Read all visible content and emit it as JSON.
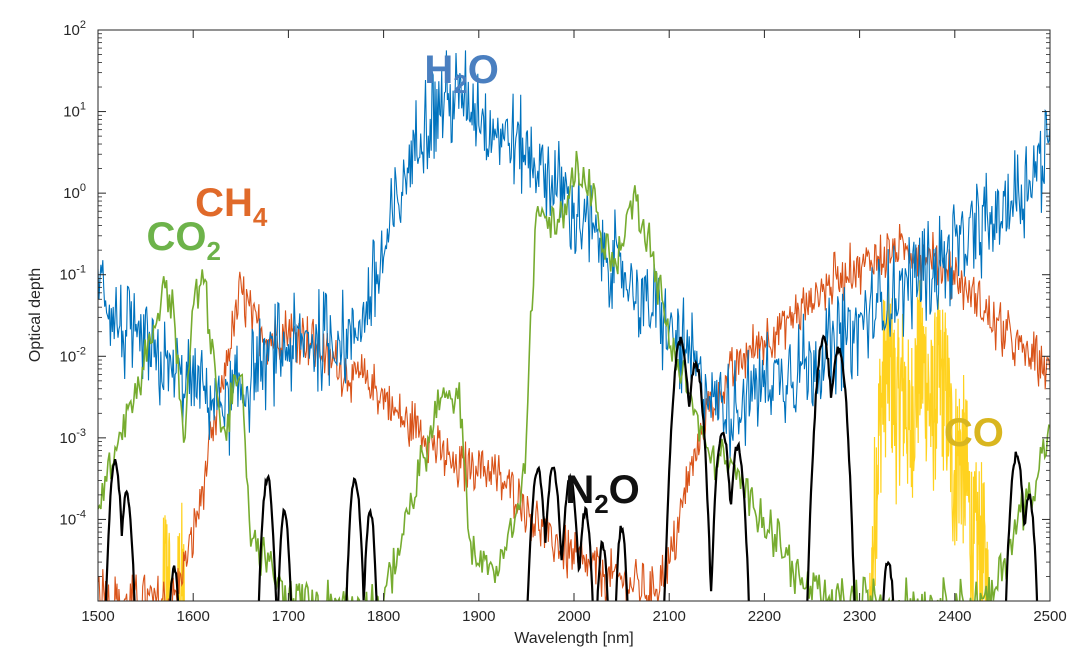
{
  "chart_data": {
    "type": "line",
    "title": "",
    "xlabel": "Wavelength [nm]",
    "ylabel": "Optical depth",
    "xlim": [
      1500,
      2500
    ],
    "ylim_log10": [
      -5,
      2
    ],
    "yscale": "log",
    "grid": false,
    "x_ticks": [
      1500,
      1600,
      1700,
      1800,
      1900,
      2000,
      2100,
      2200,
      2300,
      2400,
      2500
    ],
    "y_ticks": [
      {
        "base": "10",
        "exp": "-4",
        "log10": -4
      },
      {
        "base": "10",
        "exp": "-3",
        "log10": -3
      },
      {
        "base": "10",
        "exp": "-2",
        "log10": -2
      },
      {
        "base": "10",
        "exp": "-1",
        "log10": -1
      },
      {
        "base": "10",
        "exp": "0",
        "log10": 0
      },
      {
        "base": "10",
        "exp": "1",
        "log10": 1
      },
      {
        "base": "10",
        "exp": "2",
        "log10": 2
      }
    ],
    "annotations": [
      {
        "base": "H",
        "sub": "2",
        "rest": "O",
        "color": "#4a7fc0",
        "x": 1882,
        "log10y": 1.35
      },
      {
        "base": "CH",
        "sub": "4",
        "rest": "",
        "color": "#e06a2a",
        "x": 1640,
        "log10y": -0.28
      },
      {
        "base": "CO",
        "sub": "2",
        "rest": "",
        "color": "#6db34a",
        "x": 1590,
        "log10y": -0.7
      },
      {
        "base": "N",
        "sub": "2",
        "rest": "O",
        "color": "#111111",
        "x": 2030,
        "log10y": -3.8
      },
      {
        "base": "CO",
        "sub": "",
        "rest": "",
        "color": "#d9b61f",
        "x": 2420,
        "log10y": -3.1
      }
    ],
    "series_colors": {
      "H2O": "#0072bd",
      "CH4": "#d95319",
      "CO2": "#77ac30",
      "N2O": "#000000",
      "CO": "#ffd21f"
    },
    "series": [
      {
        "name": "H2O",
        "x": [
          1500,
          1520,
          1540,
          1560,
          1580,
          1600,
          1620,
          1640,
          1660,
          1680,
          1700,
          1720,
          1740,
          1760,
          1780,
          1800,
          1820,
          1840,
          1860,
          1880,
          1900,
          1920,
          1940,
          1960,
          1980,
          2000,
          2020,
          2040,
          2060,
          2080,
          2100,
          2120,
          2140,
          2160,
          2180,
          2200,
          2220,
          2240,
          2260,
          2280,
          2300,
          2320,
          2340,
          2360,
          2380,
          2400,
          2420,
          2440,
          2460,
          2480,
          2500
        ],
        "values": [
          -1.0,
          -1.6,
          -1.9,
          -2.1,
          -2.2,
          -2.3,
          -2.5,
          -2.6,
          -2.3,
          -2.0,
          -1.9,
          -1.8,
          -1.8,
          -1.8,
          -1.5,
          -0.8,
          0.1,
          0.8,
          1.1,
          1.2,
          1.0,
          0.8,
          0.6,
          0.4,
          0.1,
          -0.2,
          -0.5,
          -0.8,
          -1.1,
          -1.4,
          -1.7,
          -2.0,
          -2.4,
          -2.7,
          -2.5,
          -2.3,
          -2.2,
          -2.1,
          -2.0,
          -1.8,
          -1.6,
          -1.4,
          -1.2,
          -1.0,
          -0.9,
          -0.7,
          -0.5,
          -0.3,
          -0.1,
          0.2,
          0.5
        ],
        "noise_amp": 0.65
      },
      {
        "name": "CH4",
        "x": [
          1500,
          1520,
          1540,
          1560,
          1580,
          1600,
          1620,
          1640,
          1650,
          1660,
          1680,
          1700,
          1720,
          1740,
          1760,
          1780,
          1800,
          1820,
          1840,
          1860,
          1880,
          1900,
          1920,
          1940,
          1960,
          1980,
          2000,
          2020,
          2040,
          2060,
          2080,
          2100,
          2120,
          2140,
          2160,
          2180,
          2200,
          2220,
          2240,
          2260,
          2280,
          2300,
          2320,
          2340,
          2360,
          2380,
          2400,
          2420,
          2440,
          2460,
          2480,
          2500
        ],
        "values": [
          -4.8,
          -5.0,
          -5.0,
          -5.0,
          -5.0,
          -4.2,
          -3.0,
          -1.8,
          -1.2,
          -1.5,
          -1.8,
          -1.7,
          -1.8,
          -2.0,
          -2.2,
          -2.3,
          -2.5,
          -2.8,
          -2.9,
          -3.2,
          -3.4,
          -3.3,
          -3.5,
          -3.7,
          -4.0,
          -4.3,
          -4.5,
          -4.6,
          -4.7,
          -4.8,
          -4.9,
          -4.6,
          -3.5,
          -2.7,
          -2.3,
          -2.0,
          -1.8,
          -1.6,
          -1.4,
          -1.2,
          -1.0,
          -0.9,
          -0.8,
          -0.7,
          -0.7,
          -0.8,
          -1.0,
          -1.3,
          -1.6,
          -1.8,
          -2.0,
          -2.2
        ],
        "noise_amp": 0.35
      },
      {
        "name": "CO2",
        "x": [
          1500,
          1520,
          1540,
          1560,
          1570,
          1580,
          1590,
          1600,
          1610,
          1620,
          1630,
          1650,
          1660,
          1700,
          1800,
          1860,
          1880,
          1890,
          1900,
          1920,
          1940,
          1950,
          1960,
          1970,
          1980,
          1990,
          2000,
          2010,
          2020,
          2030,
          2040,
          2050,
          2060,
          2070,
          2080,
          2090,
          2100,
          2120,
          2140,
          2160,
          2180,
          2200,
          2220,
          2240,
          2260,
          2280,
          2300,
          2440,
          2460,
          2480,
          2500
        ],
        "values": [
          -3.8,
          -3.0,
          -2.4,
          -1.6,
          -1.1,
          -1.4,
          -3.2,
          -1.3,
          -1.0,
          -1.8,
          -3.0,
          -2.2,
          -4.2,
          -5.0,
          -5.0,
          -2.5,
          -2.6,
          -4.2,
          -4.5,
          -4.6,
          -4.0,
          -3.0,
          -0.2,
          -0.3,
          -0.5,
          -0.2,
          0.3,
          0.2,
          0.0,
          -0.6,
          -0.9,
          -0.6,
          -0.1,
          -0.2,
          -0.6,
          -1.2,
          -1.8,
          -2.4,
          -3.2,
          -3.3,
          -3.6,
          -4.0,
          -4.4,
          -4.8,
          -5.0,
          -5.0,
          -5.0,
          -5.0,
          -4.2,
          -3.6,
          -3.0
        ],
        "noise_amp": 0.3
      },
      {
        "name": "N2O",
        "bands": [
          {
            "center": 1518,
            "width": 7,
            "peak": -3.3
          },
          {
            "center": 1530,
            "width": 7,
            "peak": -3.7
          },
          {
            "center": 1580,
            "width": 6,
            "peak": -4.6
          },
          {
            "center": 1678,
            "width": 7,
            "peak": -3.5
          },
          {
            "center": 1696,
            "width": 6,
            "peak": -3.9
          },
          {
            "center": 1770,
            "width": 7,
            "peak": -3.5
          },
          {
            "center": 1786,
            "width": 6,
            "peak": -3.9
          },
          {
            "center": 1962,
            "width": 8,
            "peak": -3.4
          },
          {
            "center": 1978,
            "width": 8,
            "peak": -3.4
          },
          {
            "center": 1996,
            "width": 8,
            "peak": -3.5
          },
          {
            "center": 2012,
            "width": 7,
            "peak": -3.9
          },
          {
            "center": 2030,
            "width": 6,
            "peak": -4.3
          },
          {
            "center": 2050,
            "width": 6,
            "peak": -4.1
          },
          {
            "center": 2112,
            "width": 9,
            "peak": -1.8
          },
          {
            "center": 2128,
            "width": 9,
            "peak": -2.1
          },
          {
            "center": 2156,
            "width": 8,
            "peak": -2.9
          },
          {
            "center": 2172,
            "width": 8,
            "peak": -3.1
          },
          {
            "center": 2262,
            "width": 9,
            "peak": -1.8
          },
          {
            "center": 2278,
            "width": 9,
            "peak": -1.9
          },
          {
            "center": 2330,
            "width": 7,
            "peak": -4.5
          },
          {
            "center": 2465,
            "width": 8,
            "peak": -3.2
          },
          {
            "center": 2478,
            "width": 7,
            "peak": -3.7
          }
        ]
      },
      {
        "name": "CO",
        "bands": [
          {
            "center": 1572,
            "width": 5,
            "peak": -4.7
          },
          {
            "center": 1587,
            "width": 5,
            "peak": -4.8
          },
          {
            "center": 2330,
            "width": 10,
            "peak": -2.1
          },
          {
            "center": 2345,
            "width": 9,
            "peak": -2.4
          },
          {
            "center": 2365,
            "width": 12,
            "peak": -2.1
          },
          {
            "center": 2385,
            "width": 12,
            "peak": -2.3
          },
          {
            "center": 2405,
            "width": 12,
            "peak": -3.2
          },
          {
            "center": 2425,
            "width": 10,
            "peak": -4.3
          }
        ]
      }
    ]
  }
}
